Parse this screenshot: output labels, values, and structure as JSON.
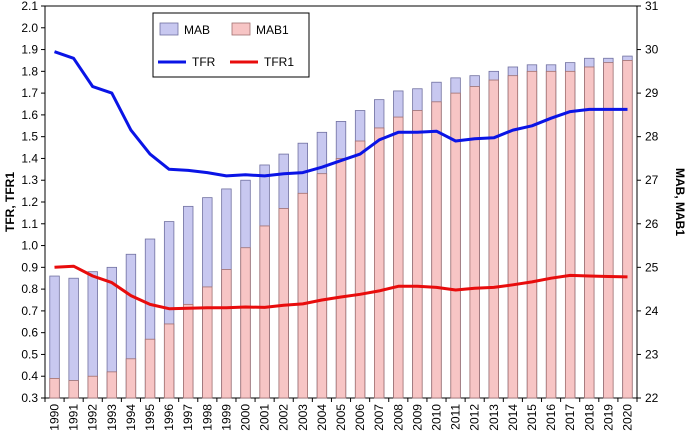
{
  "chart_data": {
    "type": "bar",
    "categories": [
      "1990",
      "1991",
      "1992",
      "1993",
      "1994",
      "1995",
      "1996",
      "1997",
      "1998",
      "1999",
      "2000",
      "2001",
      "2002",
      "2003",
      "2004",
      "2005",
      "2006",
      "2007",
      "2008",
      "2009",
      "2010",
      "2011",
      "2012",
      "2013",
      "2014",
      "2015",
      "2016",
      "2017",
      "2018",
      "2019",
      "2020"
    ],
    "bar_series": [
      {
        "name": "MAB",
        "axis": "right",
        "color": "#c8c8f0",
        "stroke": "#7070a0",
        "values": [
          24.8,
          24.75,
          24.9,
          25.0,
          25.3,
          25.65,
          26.05,
          26.4,
          26.6,
          26.8,
          27.0,
          27.35,
          27.6,
          27.85,
          28.1,
          28.35,
          28.6,
          28.85,
          29.05,
          29.1,
          29.25,
          29.35,
          29.4,
          29.5,
          29.6,
          29.65,
          29.65,
          29.7,
          29.8,
          29.8,
          29.85
        ]
      },
      {
        "name": "MAB1",
        "axis": "right",
        "color": "#f7c5c5",
        "stroke": "#a07070",
        "values": [
          22.45,
          22.4,
          22.5,
          22.6,
          22.9,
          23.35,
          23.7,
          24.15,
          24.55,
          24.95,
          25.45,
          25.95,
          26.35,
          26.7,
          27.15,
          27.5,
          27.9,
          28.2,
          28.45,
          28.6,
          28.8,
          29.0,
          29.15,
          29.3,
          29.4,
          29.5,
          29.5,
          29.5,
          29.6,
          29.7,
          29.75
        ]
      }
    ],
    "line_series": [
      {
        "name": "TFR",
        "axis": "left",
        "color": "#0a14e6",
        "values": [
          1.89,
          1.86,
          1.73,
          1.7,
          1.53,
          1.42,
          1.35,
          1.345,
          1.335,
          1.32,
          1.325,
          1.32,
          1.33,
          1.335,
          1.36,
          1.39,
          1.42,
          1.485,
          1.52,
          1.52,
          1.525,
          1.48,
          1.49,
          1.495,
          1.53,
          1.55,
          1.585,
          1.615,
          1.625,
          1.625,
          1.625
        ]
      },
      {
        "name": "TFR1",
        "axis": "left",
        "color": "#e80c0c",
        "values": [
          0.9,
          0.905,
          0.86,
          0.83,
          0.77,
          0.73,
          0.71,
          0.712,
          0.714,
          0.714,
          0.718,
          0.716,
          0.726,
          0.732,
          0.75,
          0.764,
          0.776,
          0.792,
          0.813,
          0.813,
          0.808,
          0.796,
          0.804,
          0.808,
          0.82,
          0.833,
          0.85,
          0.863,
          0.86,
          0.858,
          0.856
        ]
      }
    ],
    "left_axis": {
      "label": "TFR, TFR1",
      "min": 0.3,
      "max": 2.1,
      "step": 0.1,
      "tick_labels": [
        "0.3",
        "0.4",
        "0.5",
        "0.6",
        "0.7",
        "0.8",
        "0.9",
        "1.0",
        "1.1",
        "1.2",
        "1.3",
        "1.4",
        "1.5",
        "1.6",
        "1.7",
        "1.8",
        "1.9",
        "2.0",
        "2.1"
      ]
    },
    "right_axis": {
      "label": "MAB, MAB1",
      "min": 22,
      "max": 31,
      "step": 1,
      "tick_labels": [
        "22",
        "23",
        "24",
        "25",
        "26",
        "27",
        "28",
        "29",
        "30",
        "31"
      ]
    },
    "legend": {
      "placement": "top-left-inside",
      "entries": [
        "MAB",
        "MAB1",
        "TFR",
        "TFR1"
      ]
    },
    "grid": false,
    "xlabel": ""
  }
}
